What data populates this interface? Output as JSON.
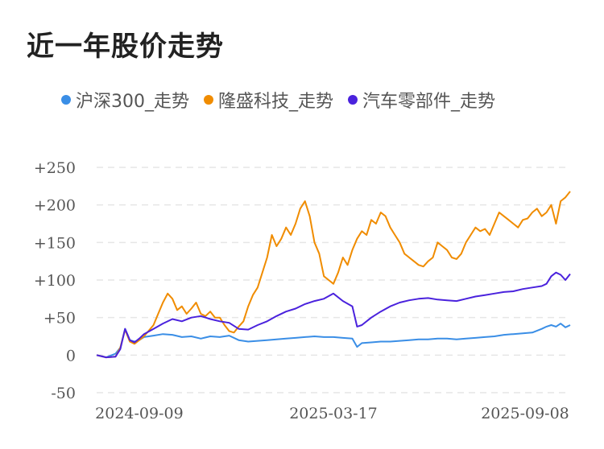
{
  "title": "近一年股价走势",
  "colors": {
    "hs300": "#3a8ee6",
    "longsheng": "#f08c00",
    "auto_parts": "#4a22dd",
    "grid": "#e6e6e6"
  },
  "chart_data": {
    "type": "line",
    "ylim": [
      -50,
      250
    ],
    "yticks": [
      "+250",
      "+200",
      "+150",
      "+100",
      "+50",
      "0",
      "-50"
    ],
    "ytick_values": [
      250,
      200,
      150,
      100,
      50,
      0,
      -50
    ],
    "xticks": [
      "2024-09-09",
      "2025-03-17",
      "2025-09-08"
    ],
    "xtick_positions": [
      0.09,
      0.5,
      0.98
    ],
    "xrange": [
      0,
      1
    ],
    "grid": true,
    "legend_position": "top",
    "series": [
      {
        "name": "沪深300_走势",
        "color": "#3a8ee6",
        "x": [
          0.0,
          0.02,
          0.04,
          0.05,
          0.06,
          0.07,
          0.08,
          0.09,
          0.1,
          0.12,
          0.14,
          0.16,
          0.18,
          0.2,
          0.22,
          0.24,
          0.26,
          0.28,
          0.3,
          0.32,
          0.34,
          0.36,
          0.38,
          0.4,
          0.42,
          0.44,
          0.46,
          0.48,
          0.5,
          0.52,
          0.54,
          0.55,
          0.56,
          0.58,
          0.6,
          0.62,
          0.64,
          0.66,
          0.68,
          0.7,
          0.72,
          0.74,
          0.76,
          0.78,
          0.8,
          0.82,
          0.84,
          0.86,
          0.88,
          0.9,
          0.92,
          0.94,
          0.95,
          0.96,
          0.97,
          0.98,
          0.99,
          1.0
        ],
        "values": [
          0,
          -3,
          2,
          10,
          35,
          20,
          18,
          20,
          24,
          26,
          28,
          27,
          24,
          25,
          22,
          25,
          24,
          26,
          20,
          18,
          19,
          20,
          21,
          22,
          23,
          24,
          25,
          24,
          24,
          23,
          22,
          11,
          16,
          17,
          18,
          18,
          19,
          20,
          21,
          21,
          22,
          22,
          21,
          22,
          23,
          24,
          25,
          27,
          28,
          29,
          30,
          35,
          38,
          40,
          38,
          42,
          37,
          40
        ]
      },
      {
        "name": "隆盛科技_走势",
        "color": "#f08c00",
        "x": [
          0.0,
          0.02,
          0.04,
          0.05,
          0.06,
          0.07,
          0.08,
          0.09,
          0.1,
          0.12,
          0.13,
          0.14,
          0.15,
          0.16,
          0.17,
          0.18,
          0.19,
          0.2,
          0.21,
          0.22,
          0.23,
          0.24,
          0.25,
          0.26,
          0.27,
          0.28,
          0.29,
          0.3,
          0.31,
          0.32,
          0.33,
          0.34,
          0.35,
          0.36,
          0.37,
          0.38,
          0.39,
          0.4,
          0.41,
          0.42,
          0.43,
          0.44,
          0.45,
          0.46,
          0.47,
          0.48,
          0.49,
          0.5,
          0.51,
          0.52,
          0.53,
          0.54,
          0.55,
          0.56,
          0.57,
          0.58,
          0.59,
          0.6,
          0.61,
          0.62,
          0.63,
          0.64,
          0.65,
          0.66,
          0.67,
          0.68,
          0.69,
          0.7,
          0.71,
          0.72,
          0.73,
          0.74,
          0.75,
          0.76,
          0.77,
          0.78,
          0.79,
          0.8,
          0.81,
          0.82,
          0.83,
          0.84,
          0.85,
          0.86,
          0.87,
          0.88,
          0.89,
          0.9,
          0.91,
          0.92,
          0.93,
          0.94,
          0.95,
          0.96,
          0.97,
          0.98,
          0.99,
          1.0
        ],
        "values": [
          0,
          -3,
          -2,
          10,
          34,
          18,
          15,
          20,
          25,
          40,
          55,
          70,
          82,
          75,
          60,
          65,
          55,
          62,
          70,
          55,
          52,
          58,
          50,
          50,
          40,
          32,
          30,
          38,
          45,
          65,
          80,
          90,
          110,
          130,
          160,
          145,
          155,
          170,
          160,
          175,
          195,
          205,
          185,
          150,
          135,
          105,
          100,
          95,
          110,
          130,
          120,
          140,
          155,
          165,
          160,
          180,
          175,
          190,
          185,
          170,
          160,
          150,
          135,
          130,
          125,
          120,
          118,
          125,
          130,
          150,
          145,
          140,
          130,
          128,
          135,
          150,
          160,
          170,
          165,
          168,
          160,
          175,
          190,
          185,
          180,
          175,
          170,
          180,
          182,
          190,
          195,
          185,
          190,
          200,
          175,
          205,
          210,
          218
        ]
      },
      {
        "name": "汽车零部件_走势",
        "color": "#4a22dd",
        "x": [
          0.0,
          0.02,
          0.04,
          0.05,
          0.06,
          0.07,
          0.08,
          0.09,
          0.1,
          0.12,
          0.14,
          0.16,
          0.18,
          0.2,
          0.22,
          0.24,
          0.26,
          0.28,
          0.3,
          0.32,
          0.34,
          0.36,
          0.38,
          0.4,
          0.42,
          0.44,
          0.46,
          0.48,
          0.5,
          0.52,
          0.54,
          0.55,
          0.56,
          0.58,
          0.6,
          0.62,
          0.64,
          0.66,
          0.68,
          0.7,
          0.72,
          0.74,
          0.76,
          0.78,
          0.8,
          0.82,
          0.84,
          0.86,
          0.88,
          0.9,
          0.92,
          0.94,
          0.95,
          0.96,
          0.97,
          0.98,
          0.99,
          1.0
        ],
        "values": [
          0,
          -3,
          -2,
          8,
          35,
          20,
          17,
          22,
          28,
          35,
          42,
          48,
          45,
          50,
          52,
          48,
          45,
          43,
          35,
          34,
          40,
          45,
          52,
          58,
          62,
          68,
          72,
          75,
          82,
          72,
          65,
          38,
          40,
          50,
          58,
          65,
          70,
          73,
          75,
          76,
          74,
          73,
          72,
          75,
          78,
          80,
          82,
          84,
          85,
          88,
          90,
          92,
          95,
          105,
          110,
          107,
          100,
          108
        ]
      }
    ]
  }
}
